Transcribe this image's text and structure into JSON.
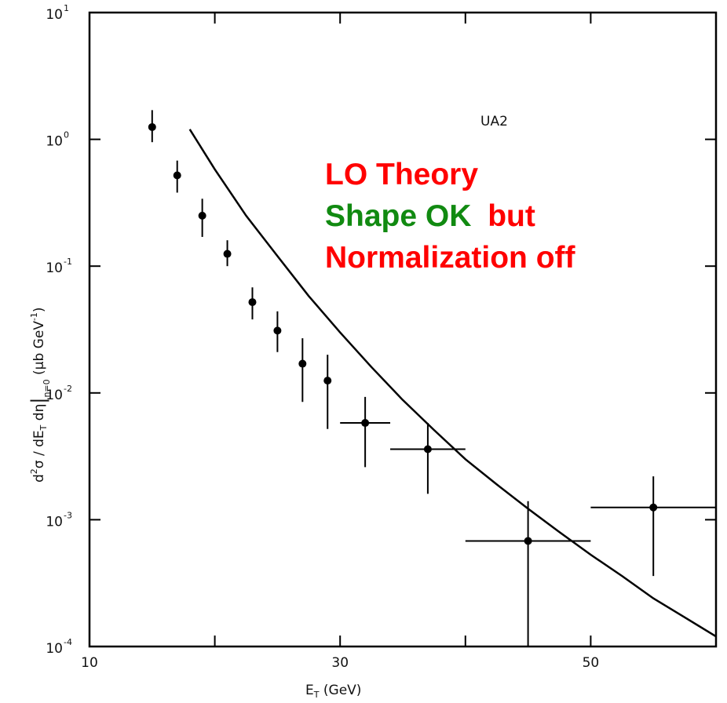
{
  "chart_data": {
    "type": "scatter",
    "scale": {
      "x": "linear",
      "y": "log"
    },
    "xlim": [
      10,
      60
    ],
    "ylim": [
      0.0001,
      10
    ],
    "x_ticks": [
      {
        "value": 10,
        "label": "10"
      },
      {
        "value": 30,
        "label": "30"
      },
      {
        "value": 50,
        "label": "50"
      }
    ],
    "y_ticks": [
      {
        "value": 10,
        "base": "10",
        "exp": "1"
      },
      {
        "value": 1,
        "base": "10",
        "exp": "0"
      },
      {
        "value": 0.1,
        "base": "10",
        "exp": "-1"
      },
      {
        "value": 0.01,
        "base": "10",
        "exp": "-2"
      },
      {
        "value": 0.001,
        "base": "10",
        "exp": "-3"
      },
      {
        "value": 0.0001,
        "base": "10",
        "exp": "-4"
      }
    ],
    "xlabel": "E_T (GeV)",
    "ylabel": "d²σ / dE_T dη|η=0 (µb GeV⁻¹)",
    "experiment_label": "UA2",
    "data_series": {
      "points": [
        {
          "x": 15,
          "y": 1.25,
          "ylo": 0.95,
          "yhi": 1.7
        },
        {
          "x": 17,
          "y": 0.52,
          "ylo": 0.38,
          "yhi": 0.68
        },
        {
          "x": 19,
          "y": 0.25,
          "ylo": 0.17,
          "yhi": 0.34
        },
        {
          "x": 21,
          "y": 0.125,
          "ylo": 0.1,
          "yhi": 0.16
        },
        {
          "x": 23,
          "y": 0.052,
          "ylo": 0.038,
          "yhi": 0.068
        },
        {
          "x": 25,
          "y": 0.031,
          "ylo": 0.021,
          "yhi": 0.044
        },
        {
          "x": 27,
          "y": 0.017,
          "ylo": 0.0085,
          "yhi": 0.027
        },
        {
          "x": 29,
          "y": 0.0125,
          "ylo": 0.0052,
          "yhi": 0.02
        },
        {
          "x": 32,
          "y": 0.0058,
          "xlo": 30,
          "xhi": 34,
          "ylo": 0.0026,
          "yhi": 0.0093
        },
        {
          "x": 37,
          "y": 0.0036,
          "xlo": 34,
          "xhi": 40,
          "ylo": 0.0016,
          "yhi": 0.0058
        },
        {
          "x": 45,
          "y": 0.00068,
          "xlo": 40,
          "xhi": 50,
          "ylo": 0.0001,
          "yhi": 0.0014
        },
        {
          "x": 55,
          "y": 0.00125,
          "xlo": 50,
          "xhi": 60,
          "ylo": 0.00036,
          "yhi": 0.0022
        }
      ]
    },
    "theory_curve": {
      "points": [
        {
          "x": 18,
          "y": 1.2
        },
        {
          "x": 20,
          "y": 0.58
        },
        {
          "x": 22.5,
          "y": 0.25
        },
        {
          "x": 25,
          "y": 0.12
        },
        {
          "x": 27.5,
          "y": 0.058
        },
        {
          "x": 30,
          "y": 0.03
        },
        {
          "x": 32.5,
          "y": 0.016
        },
        {
          "x": 35,
          "y": 0.0088
        },
        {
          "x": 37.5,
          "y": 0.0051
        },
        {
          "x": 40,
          "y": 0.003
        },
        {
          "x": 42.5,
          "y": 0.0019
        },
        {
          "x": 45,
          "y": 0.00122
        },
        {
          "x": 47.5,
          "y": 0.0008
        },
        {
          "x": 50,
          "y": 0.00053
        },
        {
          "x": 52.5,
          "y": 0.00036
        },
        {
          "x": 55,
          "y": 0.00024
        },
        {
          "x": 57.5,
          "y": 0.00017
        },
        {
          "x": 60,
          "y": 0.00012
        }
      ]
    }
  },
  "annotation": {
    "line1": "LO Theory",
    "line2_part1": "Shape OK",
    "line2_part2": "but",
    "line3": "Normalization off",
    "colors": {
      "red": "#ff0000",
      "green": "#118a11"
    }
  }
}
